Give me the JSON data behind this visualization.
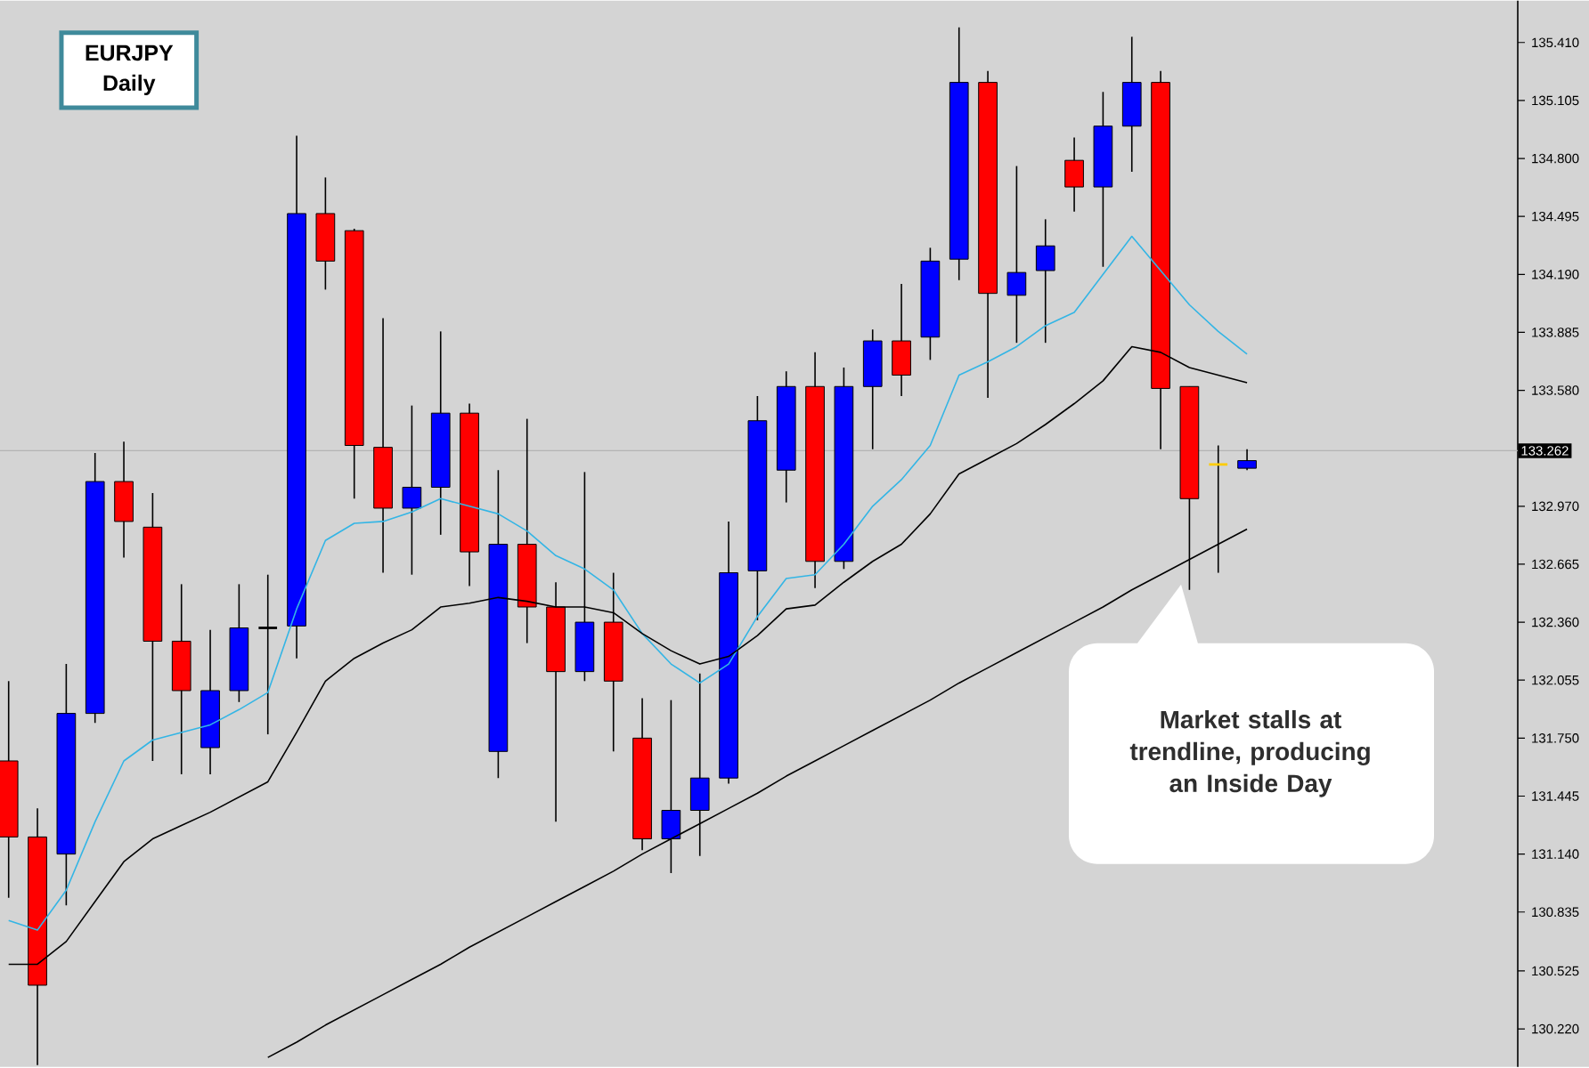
{
  "chart_data": {
    "type": "candlestick",
    "title": "EURJPY",
    "subtitle": "Daily",
    "categories": [
      null,
      null,
      null,
      null,
      null,
      null,
      null,
      null,
      null,
      null,
      null,
      null,
      null,
      null,
      null,
      null,
      null,
      null,
      null,
      null,
      null,
      null,
      null,
      null,
      null,
      null,
      null,
      null,
      null,
      null,
      null,
      null,
      null,
      null,
      null,
      null,
      null,
      null,
      null,
      null,
      null,
      null,
      null,
      null
    ],
    "ohlc": [
      [
        131.63,
        132.05,
        130.91,
        131.23
      ],
      [
        131.23,
        131.38,
        130.03,
        130.45
      ],
      [
        131.14,
        132.14,
        130.87,
        131.88
      ],
      [
        131.88,
        133.25,
        131.83,
        133.1
      ],
      [
        133.1,
        133.31,
        132.7,
        132.89
      ],
      [
        132.86,
        133.04,
        131.63,
        132.26
      ],
      [
        132.26,
        132.56,
        131.56,
        132.0
      ],
      [
        131.7,
        132.32,
        131.56,
        132.0
      ],
      [
        132.0,
        132.56,
        131.94,
        132.33
      ],
      [
        132.33,
        132.61,
        131.77,
        132.33
      ],
      [
        132.34,
        134.92,
        132.17,
        134.51
      ],
      [
        134.51,
        134.7,
        134.11,
        134.26
      ],
      [
        134.42,
        134.43,
        133.01,
        133.29
      ],
      [
        133.28,
        133.96,
        132.62,
        132.96
      ],
      [
        132.96,
        133.5,
        132.61,
        133.07
      ],
      [
        133.07,
        133.89,
        132.82,
        133.46
      ],
      [
        133.46,
        133.51,
        132.55,
        132.73
      ],
      [
        131.68,
        133.16,
        131.54,
        132.77
      ],
      [
        132.77,
        133.43,
        132.25,
        132.44
      ],
      [
        132.44,
        132.57,
        131.31,
        132.1
      ],
      [
        132.1,
        133.15,
        132.05,
        132.36
      ],
      [
        132.36,
        132.62,
        131.68,
        132.05
      ],
      [
        131.75,
        131.96,
        131.16,
        131.22
      ],
      [
        131.22,
        131.95,
        131.04,
        131.37
      ],
      [
        131.37,
        132.09,
        131.13,
        131.54
      ],
      [
        131.54,
        132.89,
        131.51,
        132.62
      ],
      [
        132.63,
        133.55,
        132.37,
        133.42
      ],
      [
        133.16,
        133.68,
        132.99,
        133.6
      ],
      [
        133.6,
        133.78,
        132.54,
        132.68
      ],
      [
        132.68,
        133.7,
        132.64,
        133.6
      ],
      [
        133.6,
        133.9,
        133.27,
        133.84
      ],
      [
        133.84,
        134.14,
        133.55,
        133.66
      ],
      [
        133.86,
        134.33,
        133.74,
        134.26
      ],
      [
        134.27,
        135.49,
        134.16,
        135.2
      ],
      [
        135.2,
        135.26,
        133.54,
        134.09
      ],
      [
        134.08,
        134.76,
        133.83,
        134.2
      ],
      [
        134.21,
        134.48,
        133.83,
        134.34
      ],
      [
        134.79,
        134.91,
        134.52,
        134.65
      ],
      [
        134.65,
        135.15,
        134.23,
        134.97
      ],
      [
        134.97,
        135.44,
        134.73,
        135.2
      ],
      [
        135.2,
        135.26,
        133.27,
        133.59
      ],
      [
        133.6,
        133.6,
        132.53,
        133.01
      ],
      [
        133.19,
        133.29,
        132.62,
        133.19
      ],
      [
        133.17,
        133.27,
        133.16,
        133.21
      ]
    ],
    "colors": [
      "#ff0000",
      "#ff0000",
      "#0000ff",
      "#0000ff",
      "#ff0000",
      "#ff0000",
      "#ff0000",
      "#0000ff",
      "#0000ff",
      "#000000",
      "#0000ff",
      "#ff0000",
      "#ff0000",
      "#ff0000",
      "#0000ff",
      "#0000ff",
      "#ff0000",
      "#0000ff",
      "#ff0000",
      "#ff0000",
      "#0000ff",
      "#ff0000",
      "#ff0000",
      "#0000ff",
      "#0000ff",
      "#0000ff",
      "#0000ff",
      "#0000ff",
      "#ff0000",
      "#0000ff",
      "#0000ff",
      "#ff0000",
      "#0000ff",
      "#0000ff",
      "#ff0000",
      "#0000ff",
      "#0000ff",
      "#ff0000",
      "#0000ff",
      "#0000ff",
      "#ff0000",
      "#ff0000",
      "#ffcc00",
      "#0000ff"
    ],
    "series": [
      {
        "type": "line",
        "color": "#33b5e5",
        "values": [
          130.79,
          130.74,
          130.95,
          131.31,
          131.63,
          131.74,
          131.78,
          131.82,
          131.9,
          131.99,
          132.43,
          132.79,
          132.88,
          132.89,
          132.94,
          133.01,
          132.97,
          132.93,
          132.84,
          132.71,
          132.64,
          132.53,
          132.3,
          132.14,
          132.04,
          132.14,
          132.39,
          132.59,
          132.61,
          132.77,
          132.97,
          133.11,
          133.29,
          133.66,
          133.73,
          133.81,
          133.92,
          133.99,
          134.19,
          134.39,
          134.21,
          134.03,
          133.89,
          133.77
        ]
      },
      {
        "type": "line",
        "color": "#000000",
        "values": [
          130.56,
          130.56,
          130.68,
          130.89,
          131.1,
          131.22,
          131.29,
          131.36,
          131.44,
          131.52,
          131.78,
          132.05,
          132.17,
          132.25,
          132.32,
          132.44,
          132.46,
          132.49,
          132.47,
          132.44,
          132.44,
          132.41,
          132.3,
          132.21,
          132.14,
          132.18,
          132.29,
          132.43,
          132.45,
          132.57,
          132.68,
          132.77,
          132.93,
          133.14,
          133.22,
          133.3,
          133.4,
          133.51,
          133.63,
          133.81,
          133.78,
          133.7,
          133.66,
          133.62
        ]
      },
      {
        "type": "line",
        "color": "#000000",
        "values": [
          null,
          null,
          null,
          null,
          null,
          null,
          null,
          null,
          null,
          130.07,
          130.15,
          130.24,
          130.32,
          130.4,
          130.48,
          130.56,
          130.65,
          130.73,
          130.81,
          130.89,
          130.97,
          131.05,
          131.14,
          131.22,
          131.3,
          131.38,
          131.46,
          131.55,
          131.63,
          131.71,
          131.79,
          131.87,
          131.95,
          132.04,
          132.12,
          132.2,
          132.28,
          132.36,
          132.44,
          132.53,
          132.61,
          132.69,
          132.77,
          132.85
        ]
      }
    ],
    "ylim": [
      130.02,
      135.63
    ],
    "yticks": [
      {
        "value": 135.41,
        "label": "135.410"
      },
      {
        "value": 135.105,
        "label": "135.105"
      },
      {
        "value": 134.8,
        "label": "134.800"
      },
      {
        "value": 134.495,
        "label": "134.495"
      },
      {
        "value": 134.19,
        "label": "134.190"
      },
      {
        "value": 133.885,
        "label": "133.885"
      },
      {
        "value": 133.58,
        "label": "133.580"
      },
      {
        "value": 132.97,
        "label": "132.970"
      },
      {
        "value": 132.665,
        "label": "132.665"
      },
      {
        "value": 132.36,
        "label": "132.360"
      },
      {
        "value": 132.055,
        "label": "132.055"
      },
      {
        "value": 131.75,
        "label": "131.750"
      },
      {
        "value": 131.445,
        "label": "131.445"
      },
      {
        "value": 131.14,
        "label": "131.140"
      },
      {
        "value": 130.835,
        "label": "130.835"
      },
      {
        "value": 130.525,
        "label": "130.525"
      },
      {
        "value": 130.22,
        "label": "130.220"
      }
    ],
    "ref_lines": [
      {
        "axis": "y",
        "value": 133.262,
        "label": "133.262",
        "color": "#b4b4b4"
      }
    ],
    "annotations": [
      "Market stalls at trendline, producing an Inside Day"
    ],
    "tick_labels": "y"
  }
}
